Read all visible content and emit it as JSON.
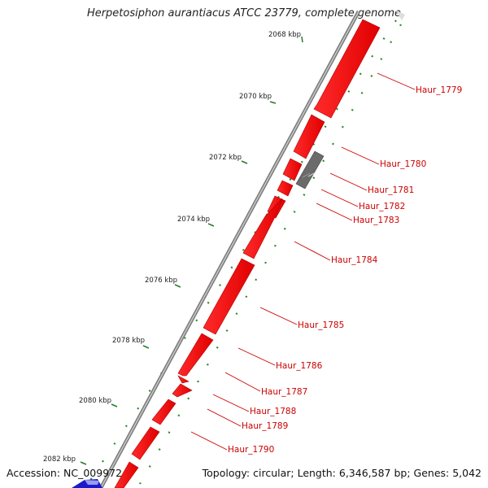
{
  "title": "Herpetosiphon aurantiacus ATCC 23779, complete genome",
  "footer": {
    "accession": "Accession: NC_009972",
    "summary": "Topology: circular; Length: 6,346,587 bp; Genes: 5,042"
  },
  "scale_labels": [
    "2068 kbp",
    "2070 kbp",
    "2072 kbp",
    "2074 kbp",
    "2076 kbp",
    "2078 kbp",
    "2080 kbp",
    "2082 kbp"
  ],
  "gene_labels": [
    "Haur_1779",
    "Haur_1780",
    "Haur_1781",
    "Haur_1782",
    "Haur_1783",
    "Haur_1784",
    "Haur_1785",
    "Haur_1786",
    "Haur_1787",
    "Haur_1788",
    "Haur_1789",
    "Haur_1790"
  ],
  "colors": {
    "gene": "#ff0000",
    "gene_label": "#cc0000",
    "backbone": "#777777",
    "grey_feature": "#666666",
    "gc_dots": "#2a8a2a",
    "other_strand": "#1a1acc"
  }
}
